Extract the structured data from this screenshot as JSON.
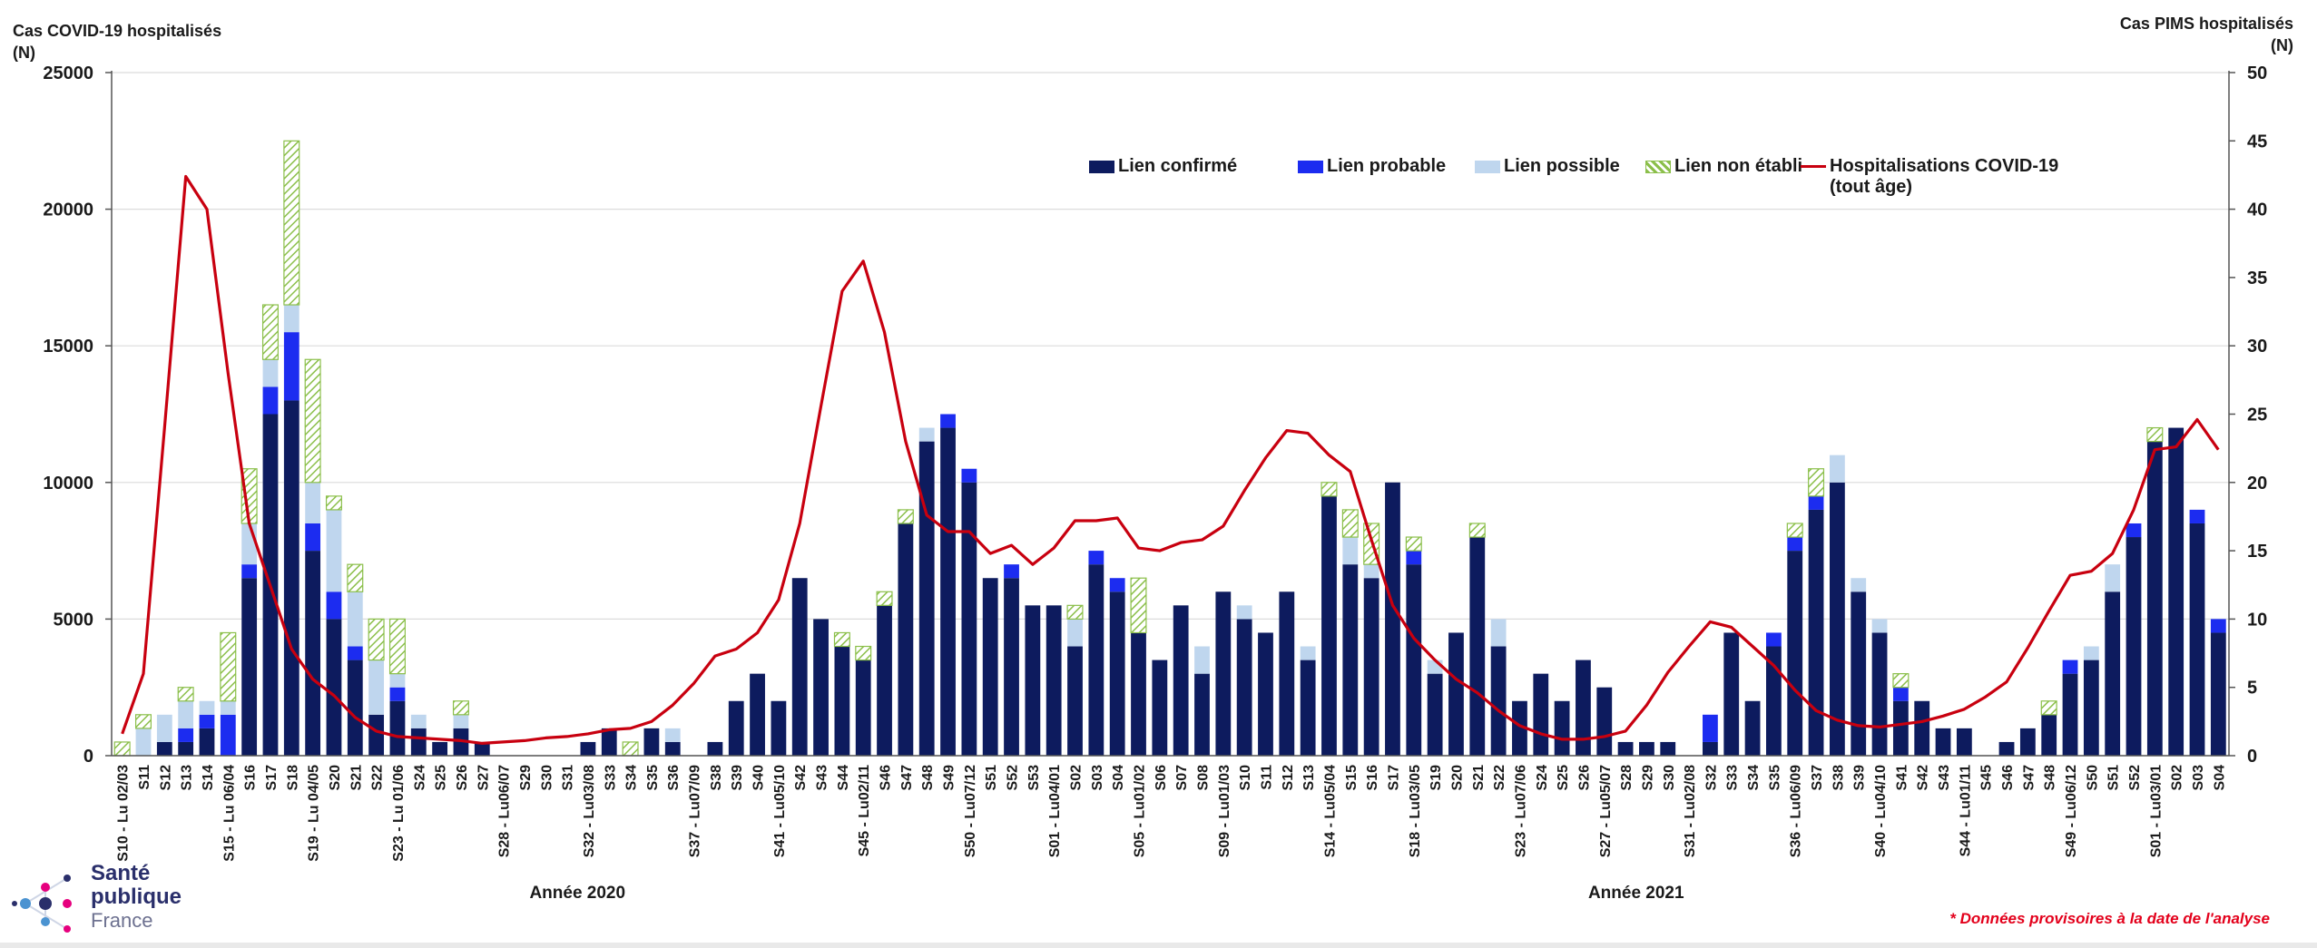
{
  "left_axis_title": "Cas COVID-19 hospitalisés",
  "left_axis_unit": "(N)",
  "right_axis_title": "Cas PIMS hospitalisés",
  "right_axis_unit": "(N)",
  "year_labels": [
    "Année 2020",
    "Année 2021"
  ],
  "footnote": "* Données provisoires à la date de l'analyse",
  "logo": {
    "line1": "Santé",
    "line2": "publique",
    "line3": "France"
  },
  "colors": {
    "confirme": "#0d1b5e",
    "probable": "#1c2cf0",
    "possible": "#bfd6ee",
    "non_etabli": "#8bbf4a",
    "line": "#c8000f",
    "grid": "#dcdcdc"
  },
  "legend": {
    "confirme": "Lien confirmé",
    "probable": "Lien probable",
    "possible": "Lien possible",
    "non_etabli": "Lien non établi",
    "line1": "Hospitalisations COVID-19",
    "line2": "(tout âge)"
  },
  "chart_data": {
    "type": "bar",
    "stacked": true,
    "categories": [
      "S10 - Lu 02/03",
      "S11",
      "S12",
      "S13",
      "S14",
      "S15 - Lu 06/04",
      "S16",
      "S17",
      "S18",
      "S19 - Lu 04/05",
      "S20",
      "S21",
      "S22",
      "S23 - Lu 01/06",
      "S24",
      "S25",
      "S26",
      "S27",
      "S28 - Lu06/07",
      "S29",
      "S30",
      "S31",
      "S32 - Lu03/08",
      "S33",
      "S34",
      "S35",
      "S36",
      "S37 - Lu07/09",
      "S38",
      "S39",
      "S40",
      "S41 - Lu05/10",
      "S42",
      "S43",
      "S44",
      "S45 - Lu02/11",
      "S46",
      "S47",
      "S48",
      "S49",
      "S50 - Lu07/12",
      "S51",
      "S52",
      "S53",
      "S01 - Lu04/01",
      "S02",
      "S03",
      "S04",
      "S05 - Lu01/02",
      "S06",
      "S07",
      "S08",
      "S09 - Lu01/03",
      "S10",
      "S11",
      "S12",
      "S13",
      "S14 - Lu05/04",
      "S15",
      "S16",
      "S17",
      "S18 - Lu03/05",
      "S19",
      "S20",
      "S21",
      "S22",
      "S23 - Lu07/06",
      "S24",
      "S25",
      "S26",
      "S27 - Lu05/07",
      "S28",
      "S29",
      "S30",
      "S31 - Lu02/08",
      "S32",
      "S33",
      "S34",
      "S35",
      "S36 - Lu06/09",
      "S37",
      "S38",
      "S39",
      "S40 - Lu04/10",
      "S41",
      "S42",
      "S43",
      "S44 - Lu01/11",
      "S45",
      "S46",
      "S47",
      "S48",
      "S49 - Lu06/12",
      "S50",
      "S51",
      "S52",
      "S01 - Lu03/01",
      "S02",
      "S03",
      "S04"
    ],
    "series": [
      {
        "name": "Lien confirmé",
        "axis": "right",
        "values": [
          0,
          0,
          1,
          1,
          2,
          0,
          13,
          25,
          26,
          15,
          10,
          7,
          3,
          4,
          2,
          1,
          2,
          1,
          0,
          0,
          0,
          0,
          1,
          2,
          0,
          2,
          1,
          0,
          1,
          4,
          6,
          4,
          13,
          10,
          8,
          7,
          11,
          17,
          23,
          24,
          20,
          13,
          13,
          11,
          11,
          8,
          14,
          12,
          9,
          7,
          11,
          6,
          12,
          10,
          9,
          12,
          7,
          19,
          14,
          13,
          20,
          14,
          6,
          9,
          16,
          8,
          4,
          6,
          4,
          7,
          5,
          1,
          1,
          1,
          0,
          1,
          9,
          4,
          8,
          15,
          18,
          20,
          12,
          9,
          4,
          4,
          2,
          2,
          0,
          1,
          2,
          3,
          6,
          7,
          12,
          16,
          23,
          24,
          17,
          9
        ]
      },
      {
        "name": "Lien probable",
        "axis": "right",
        "values": [
          0,
          0,
          0,
          1,
          1,
          3,
          1,
          2,
          5,
          2,
          2,
          1,
          0,
          1,
          0,
          0,
          0,
          0,
          0,
          0,
          0,
          0,
          0,
          0,
          0,
          0,
          0,
          0,
          0,
          0,
          0,
          0,
          0,
          0,
          0,
          0,
          0,
          0,
          0,
          1,
          1,
          0,
          1,
          0,
          0,
          0,
          1,
          1,
          0,
          0,
          0,
          0,
          0,
          0,
          0,
          0,
          0,
          0,
          0,
          0,
          0,
          1,
          0,
          0,
          0,
          0,
          0,
          0,
          0,
          0,
          0,
          0,
          0,
          0,
          0,
          2,
          0,
          0,
          1,
          1,
          1,
          0,
          0,
          0,
          1,
          0,
          0,
          0,
          0,
          0,
          0,
          0,
          1,
          0,
          0,
          1,
          0,
          0,
          1,
          1
        ]
      },
      {
        "name": "Lien possible",
        "axis": "right",
        "values": [
          0,
          2,
          2,
          2,
          1,
          1,
          3,
          2,
          2,
          3,
          6,
          4,
          4,
          1,
          1,
          0,
          1,
          0,
          0,
          0,
          0,
          0,
          0,
          0,
          0,
          0,
          1,
          0,
          0,
          0,
          0,
          0,
          0,
          0,
          0,
          0,
          0,
          0,
          1,
          0,
          0,
          0,
          0,
          0,
          0,
          2,
          0,
          0,
          0,
          0,
          0,
          2,
          0,
          1,
          0,
          0,
          1,
          0,
          2,
          1,
          0,
          0,
          1,
          0,
          0,
          2,
          0,
          0,
          0,
          0,
          0,
          0,
          0,
          0,
          0,
          0,
          0,
          0,
          0,
          0,
          0,
          2,
          1,
          1,
          0,
          0,
          0,
          0,
          0,
          0,
          0,
          0,
          0,
          1,
          2,
          0,
          0,
          0,
          0,
          0
        ]
      },
      {
        "name": "Lien non établi",
        "axis": "right",
        "values": [
          1,
          1,
          0,
          1,
          0,
          5,
          4,
          4,
          12,
          9,
          1,
          2,
          3,
          4,
          0,
          0,
          1,
          0,
          0,
          0,
          0,
          0,
          0,
          0,
          1,
          0,
          0,
          0,
          0,
          0,
          0,
          0,
          0,
          0,
          1,
          1,
          1,
          1,
          0,
          0,
          0,
          0,
          0,
          0,
          0,
          1,
          0,
          0,
          4,
          0,
          0,
          0,
          0,
          0,
          0,
          0,
          0,
          1,
          2,
          3,
          0,
          1,
          0,
          0,
          1,
          0,
          0,
          0,
          0,
          0,
          0,
          0,
          0,
          0,
          0,
          0,
          0,
          0,
          0,
          1,
          2,
          0,
          0,
          0,
          1,
          0,
          0,
          0,
          0,
          0,
          0,
          1,
          0,
          0,
          0,
          0,
          1,
          0,
          0,
          0
        ]
      },
      {
        "name": "Hospitalisations COVID-19 (tout âge)",
        "type": "line",
        "axis": "left",
        "values": [
          800,
          3000,
          12000,
          21200,
          20000,
          14000,
          8500,
          6200,
          3900,
          2800,
          2200,
          1400,
          900,
          700,
          650,
          600,
          550,
          450,
          500,
          550,
          650,
          700,
          800,
          950,
          1000,
          1250,
          1850,
          2650,
          3650,
          3900,
          4500,
          5700,
          8500,
          12800,
          17000,
          18100,
          15500,
          11500,
          8800,
          8200,
          8200,
          7400,
          7700,
          7000,
          7600,
          8600,
          8600,
          8700,
          7600,
          7500,
          7800,
          7900,
          8400,
          9700,
          10900,
          11900,
          11800,
          11000,
          10400,
          7900,
          5500,
          4300,
          3500,
          2800,
          2300,
          1650,
          1100,
          800,
          600,
          600,
          700,
          900,
          1850,
          3050,
          4000,
          4900,
          4700,
          4000,
          3300,
          2400,
          1650,
          1300,
          1100,
          1050,
          1150,
          1250,
          1450,
          1700,
          2150,
          2700,
          3950,
          5300,
          6600,
          6750,
          7400,
          9000,
          11200,
          11300,
          12300,
          11200
        ]
      }
    ],
    "year_groups": [
      {
        "label": "Année 2020",
        "start": 0,
        "end": 43
      },
      {
        "label": "Année 2021",
        "start": 44,
        "end": 99
      }
    ],
    "y_left": {
      "label": "Cas COVID-19 hospitalisés (N)",
      "min": 0,
      "max": 25000,
      "ticks": [
        0,
        5000,
        10000,
        15000,
        20000,
        25000
      ]
    },
    "y_right": {
      "label": "Cas PIMS hospitalisés (N)",
      "min": 0,
      "max": 50,
      "ticks": [
        0,
        5,
        10,
        15,
        20,
        25,
        30,
        35,
        40,
        45,
        50
      ]
    },
    "grid": true,
    "legend_position": "top-right"
  }
}
